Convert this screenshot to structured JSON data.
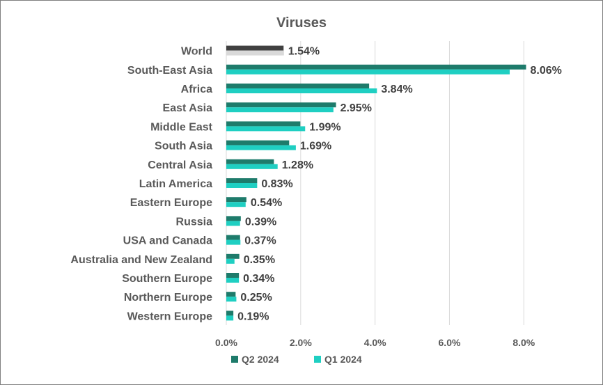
{
  "chart_data": {
    "type": "bar",
    "orientation": "horizontal",
    "title": "Viruses",
    "categories": [
      "World",
      "South-East Asia",
      "Africa",
      "East Asia",
      "Middle East",
      "South Asia",
      "Central Asia",
      "Latin America",
      "Eastern Europe",
      "Russia",
      "USA and Canada",
      "Australia and New Zealand",
      "Southern Europe",
      "Northern Europe",
      "Western Europe"
    ],
    "series": [
      {
        "name": "Q2 2024",
        "color": "#1e7b6b",
        "world_color": "#404040",
        "values": [
          1.54,
          8.06,
          3.84,
          2.95,
          1.99,
          1.69,
          1.28,
          0.83,
          0.54,
          0.39,
          0.37,
          0.35,
          0.34,
          0.25,
          0.19
        ]
      },
      {
        "name": "Q1 2024",
        "color": "#1fcfc2",
        "world_color": "#d9d9d9",
        "values": [
          1.55,
          7.62,
          4.05,
          2.88,
          2.12,
          1.87,
          1.38,
          0.83,
          0.52,
          0.37,
          0.38,
          0.22,
          0.34,
          0.27,
          0.19
        ]
      }
    ],
    "data_labels": [
      "1.54%",
      "8.06%",
      "3.84%",
      "2.95%",
      "1.99%",
      "1.69%",
      "1.28%",
      "0.83%",
      "0.54%",
      "0.39%",
      "0.37%",
      "0.35%",
      "0.34%",
      "0.25%",
      "0.19%"
    ],
    "x_ticks": [
      "0.0%",
      "2.0%",
      "4.0%",
      "6.0%",
      "8.0%"
    ],
    "x_tick_values": [
      0,
      2,
      4,
      6,
      8
    ],
    "xlim": [
      0,
      8.2
    ],
    "grid": "vertical",
    "legend_position": "bottom"
  }
}
